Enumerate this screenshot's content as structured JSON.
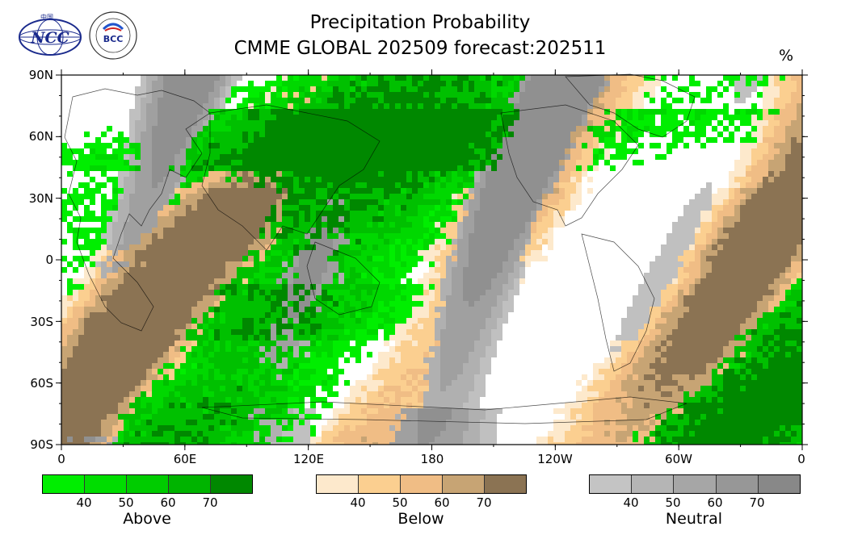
{
  "title": {
    "line1": "Precipitation Probability",
    "line2": "CMME GLOBAL 202509 forecast:202511"
  },
  "unit": "%",
  "logos": {
    "ncc": {
      "text": "NCC",
      "top_text": "中国"
    },
    "bcc": {
      "text": "BCC",
      "ring_text": "BEIJING CLIMATE CENTER"
    }
  },
  "map": {
    "lat_labels": [
      "90N",
      "60N",
      "30N",
      "0",
      "30S",
      "60S",
      "90S"
    ],
    "lon_labels": [
      "0",
      "60E",
      "120E",
      "180",
      "120W",
      "60W",
      "0"
    ],
    "colors": {
      "above": [
        "#00ee00",
        "#00d800",
        "#00c000",
        "#008800"
      ],
      "below": [
        "#fde9cc",
        "#fbcf90",
        "#f0bd85",
        "#c7a474",
        "#8b7353"
      ],
      "neutral": [
        "#c0c0c0",
        "#b0b0b0",
        "#a0a0a0",
        "#909090"
      ]
    }
  },
  "colorbars": [
    {
      "name": "Above",
      "ticks": [
        "40",
        "50",
        "60",
        "70"
      ],
      "colors": [
        "#00ee00",
        "#00dd00",
        "#00cc00",
        "#00b400",
        "#008800"
      ]
    },
    {
      "name": "Below",
      "ticks": [
        "40",
        "50",
        "60",
        "70"
      ],
      "colors": [
        "#fde9cc",
        "#fbcf90",
        "#f0bd85",
        "#c7a474",
        "#8b7353"
      ]
    },
    {
      "name": "Neutral",
      "ticks": [
        "40",
        "50",
        "60",
        "70"
      ],
      "colors": [
        "#c4c4c4",
        "#b5b5b5",
        "#a6a6a6",
        "#979797",
        "#888888"
      ]
    }
  ]
}
